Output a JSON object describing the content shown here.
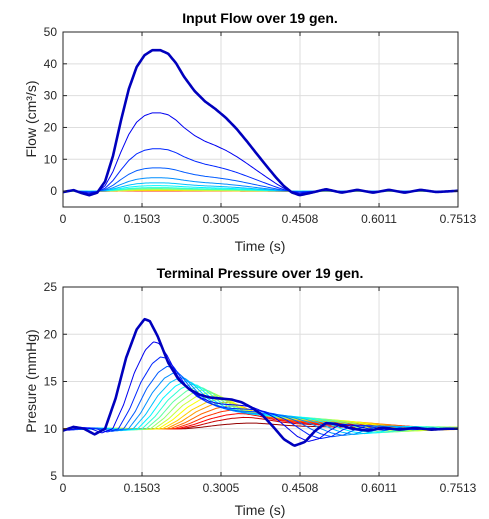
{
  "chart_data": [
    {
      "type": "line",
      "title": "Input Flow over 19 gen.",
      "xlabel": "Time (s)",
      "ylabel": "Flow (cm³/s)",
      "xlim": [
        0,
        0.7513
      ],
      "ylim": [
        -5,
        50
      ],
      "x_ticks": [
        0,
        0.1503,
        0.3005,
        0.4508,
        0.6011,
        0.7513
      ],
      "x_tick_labels": [
        "0",
        "0.1503",
        "0.3005",
        "0.4508",
        "0.6011",
        "0.7513"
      ],
      "y_ticks": [
        0,
        10,
        20,
        30,
        40,
        50
      ],
      "y_tick_labels": [
        "0",
        "10",
        "20",
        "30",
        "40",
        "50"
      ],
      "grid": true,
      "colormap": "jet (generation 1 dark blue → generation 19 dark red)",
      "series_count": 19,
      "gen1_profile": {
        "x": [
          0,
          0.02,
          0.035,
          0.05,
          0.065,
          0.08,
          0.095,
          0.11,
          0.125,
          0.14,
          0.155,
          0.17,
          0.185,
          0.2,
          0.215,
          0.23,
          0.25,
          0.27,
          0.29,
          0.31,
          0.33,
          0.35,
          0.37,
          0.39,
          0.405,
          0.42,
          0.435,
          0.45,
          0.47,
          0.5,
          0.53,
          0.56,
          0.59,
          0.62,
          0.65,
          0.68,
          0.71,
          0.7513
        ],
        "y": [
          -0.3,
          0.3,
          -0.6,
          -1.3,
          -0.5,
          3,
          11,
          22,
          32,
          39,
          42.7,
          44.3,
          44.3,
          43.2,
          40.2,
          36,
          31.5,
          28.2,
          25.8,
          23,
          19.6,
          15.6,
          11.4,
          7.3,
          4.3,
          1.6,
          -0.4,
          -1.3,
          -0.6,
          0.6,
          -0.5,
          0.4,
          -0.5,
          0.4,
          -0.5,
          0.4,
          -0.3,
          0.1
        ]
      },
      "generation_peaks": [
        44.3,
        24.6,
        13.3,
        7.3,
        4.2,
        2.6,
        1.7,
        1.1,
        0.8,
        0.6,
        0.45,
        0.35,
        0.25,
        0.2,
        0.15,
        0.1,
        0.08,
        0.05,
        0.02
      ]
    },
    {
      "type": "line",
      "title": "Terminal Pressure over 19 gen.",
      "xlabel": "Time (s)",
      "ylabel": "Presure (mmHg)",
      "xlim": [
        0,
        0.7513
      ],
      "ylim": [
        5,
        25
      ],
      "x_ticks": [
        0,
        0.1503,
        0.3005,
        0.4508,
        0.6011,
        0.7513
      ],
      "x_tick_labels": [
        "0",
        "0.1503",
        "0.3005",
        "0.4508",
        "0.6011",
        "0.7513"
      ],
      "y_ticks": [
        5,
        10,
        15,
        20,
        25
      ],
      "y_tick_labels": [
        "5",
        "10",
        "15",
        "20",
        "25"
      ],
      "grid": true,
      "colormap": "jet (generation 1 dark blue → generation 19 dark red)",
      "series_count": 19,
      "baseline": 10,
      "gen1_profile": {
        "x": [
          0,
          0.02,
          0.04,
          0.06,
          0.08,
          0.1,
          0.12,
          0.14,
          0.155,
          0.165,
          0.18,
          0.2,
          0.22,
          0.24,
          0.26,
          0.28,
          0.3,
          0.32,
          0.34,
          0.36,
          0.38,
          0.4,
          0.42,
          0.44,
          0.46,
          0.48,
          0.5,
          0.52,
          0.55,
          0.58,
          0.61,
          0.64,
          0.67,
          0.7,
          0.73,
          0.7513
        ],
        "y": [
          9.8,
          10.2,
          10.0,
          9.4,
          10.0,
          13.2,
          17.5,
          20.5,
          21.6,
          21.4,
          19.8,
          17.0,
          15.2,
          14.2,
          13.6,
          13.3,
          13.2,
          13.1,
          12.8,
          12.2,
          11.4,
          10.2,
          8.9,
          8.2,
          8.6,
          9.8,
          10.6,
          10.5,
          10.0,
          9.8,
          10.1,
          9.9,
          10.1,
          9.9,
          10.0,
          10.0
        ]
      },
      "generation_peaks": [
        21.6,
        19.2,
        17.6,
        16.6,
        15.9,
        15.4,
        15.0,
        14.7,
        14.4,
        14.1,
        13.8,
        13.5,
        13.1,
        12.8,
        12.4,
        12.0,
        11.6,
        11.2,
        10.6
      ]
    }
  ]
}
